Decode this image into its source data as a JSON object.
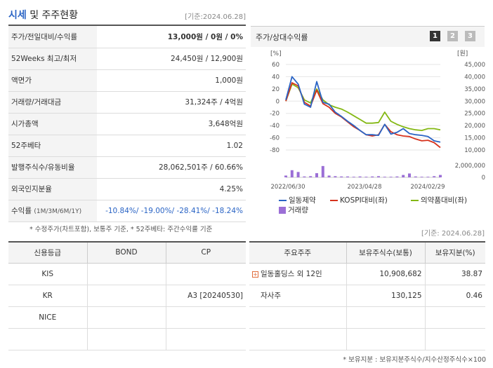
{
  "header": {
    "title_main": "시세",
    "title_rest": " 및 주주현황",
    "date": "[기준:2024.06.28]"
  },
  "stock_rows": [
    {
      "label": "주가/전일대비/수익률",
      "value": "13,000원 / 0원 / 0%"
    },
    {
      "label": "52Weeks 최고/최저",
      "value": "24,450원 / 12,900원"
    },
    {
      "label": "액면가",
      "value": "1,000원"
    },
    {
      "label": "거래량/거래대금",
      "value": "31,324주 / 4억원"
    },
    {
      "label": "시가총액",
      "value": "3,648억원"
    },
    {
      "label": "52주베타",
      "value": "1.02"
    },
    {
      "label": "발행주식수/유동비율",
      "value": "28,062,501주 / 60.66%"
    },
    {
      "label": "외국인지분율",
      "value": "4.25%"
    }
  ],
  "return_row": {
    "label": "수익률",
    "label_small": "(1M/3M/6M/1Y)",
    "value": "-10.84%/ -19.00%/ -28.41%/ -18.24%"
  },
  "footnote": "* 수정주가(차트포함), 보통주 기준, * 52주베타: 주간수익률 기준",
  "chart_panel": {
    "title": "주가/상대수익률",
    "tabs": [
      "1",
      "2",
      "3"
    ],
    "left_unit": "[%]",
    "right_unit": "[원]",
    "legend": [
      "일동제약",
      "KOSPI대비(좌)",
      "의약품대비(좌)",
      "거래량"
    ],
    "colors": {
      "stock": "#2a64c5",
      "kospi": "#d6321d",
      "pharma": "#84b814",
      "volume": "#9b6fd6"
    }
  },
  "chart_data": {
    "type": "line",
    "x_tick_labels": [
      "2022/06/30",
      "2023/04/28",
      "2024/02/29"
    ],
    "y_left": {
      "label": "[%]",
      "ticks": [
        60,
        40,
        20,
        0,
        -20,
        -40,
        -60,
        -80
      ],
      "lim": [
        -80,
        60
      ]
    },
    "y_right": {
      "label": "[원]",
      "ticks": [
        45000,
        40000,
        35000,
        30000,
        25000,
        20000,
        15000,
        10000
      ],
      "lim": [
        10000,
        45000
      ]
    },
    "volume_axis": {
      "ticks": [
        "2,000,000",
        "0"
      ],
      "lim": [
        0,
        2000000
      ]
    },
    "series": [
      {
        "name": "일동제약",
        "values": [
          2,
          40,
          28,
          -5,
          -10,
          32,
          -2,
          -5,
          -18,
          -25,
          -33,
          -40,
          -48,
          -55,
          -55,
          -56,
          -38,
          -54,
          -51,
          -45,
          -53,
          -55,
          -56,
          -58,
          -65,
          -67
        ]
      },
      {
        "name": "KOSPI대비(좌)",
        "values": [
          0,
          30,
          25,
          -2,
          -8,
          18,
          -4,
          -10,
          -20,
          -26,
          -34,
          -42,
          -48,
          -55,
          -57,
          -55,
          -38,
          -50,
          -55,
          -57,
          -58,
          -62,
          -65,
          -64,
          -68,
          -76
        ]
      },
      {
        "name": "의약품대비(좌)",
        "values": [
          0,
          28,
          22,
          2,
          -3,
          20,
          2,
          -6,
          -10,
          -13,
          -18,
          -24,
          -30,
          -36,
          -36,
          -35,
          -18,
          -33,
          -38,
          -42,
          -45,
          -47,
          -48,
          -45,
          -45,
          -47
        ]
      },
      {
        "name": "거래량",
        "values": [
          300000,
          1200000,
          900000,
          150000,
          200000,
          700000,
          1900000,
          300000,
          200000,
          150000,
          150000,
          100000,
          150000,
          100000,
          150000,
          200000,
          100000,
          100000,
          150000,
          400000,
          650000,
          150000,
          100000,
          100000,
          200000,
          400000
        ]
      }
    ]
  },
  "date2": "[기준: 2024.06.28]",
  "credit": {
    "headers": [
      "신용등급",
      "BOND",
      "CP"
    ],
    "rows": [
      [
        "KIS",
        "",
        ""
      ],
      [
        "KR",
        "",
        "A3 [20240530]"
      ],
      [
        "NICE",
        "",
        ""
      ],
      [
        "",
        "",
        ""
      ]
    ]
  },
  "holders": {
    "headers": [
      "주요주주",
      "보유주식수(보통)",
      "보유지분(%)"
    ],
    "rows": [
      {
        "name": "일동홀딩스 외 12인",
        "shares": "10,908,682",
        "pct": "38.87",
        "expand": true
      },
      {
        "name": "자사주",
        "shares": "130,125",
        "pct": "0.46",
        "expand": false
      }
    ]
  },
  "foot2": "* 보유지분 : 보유지분주식수/지수산정주식수×100"
}
